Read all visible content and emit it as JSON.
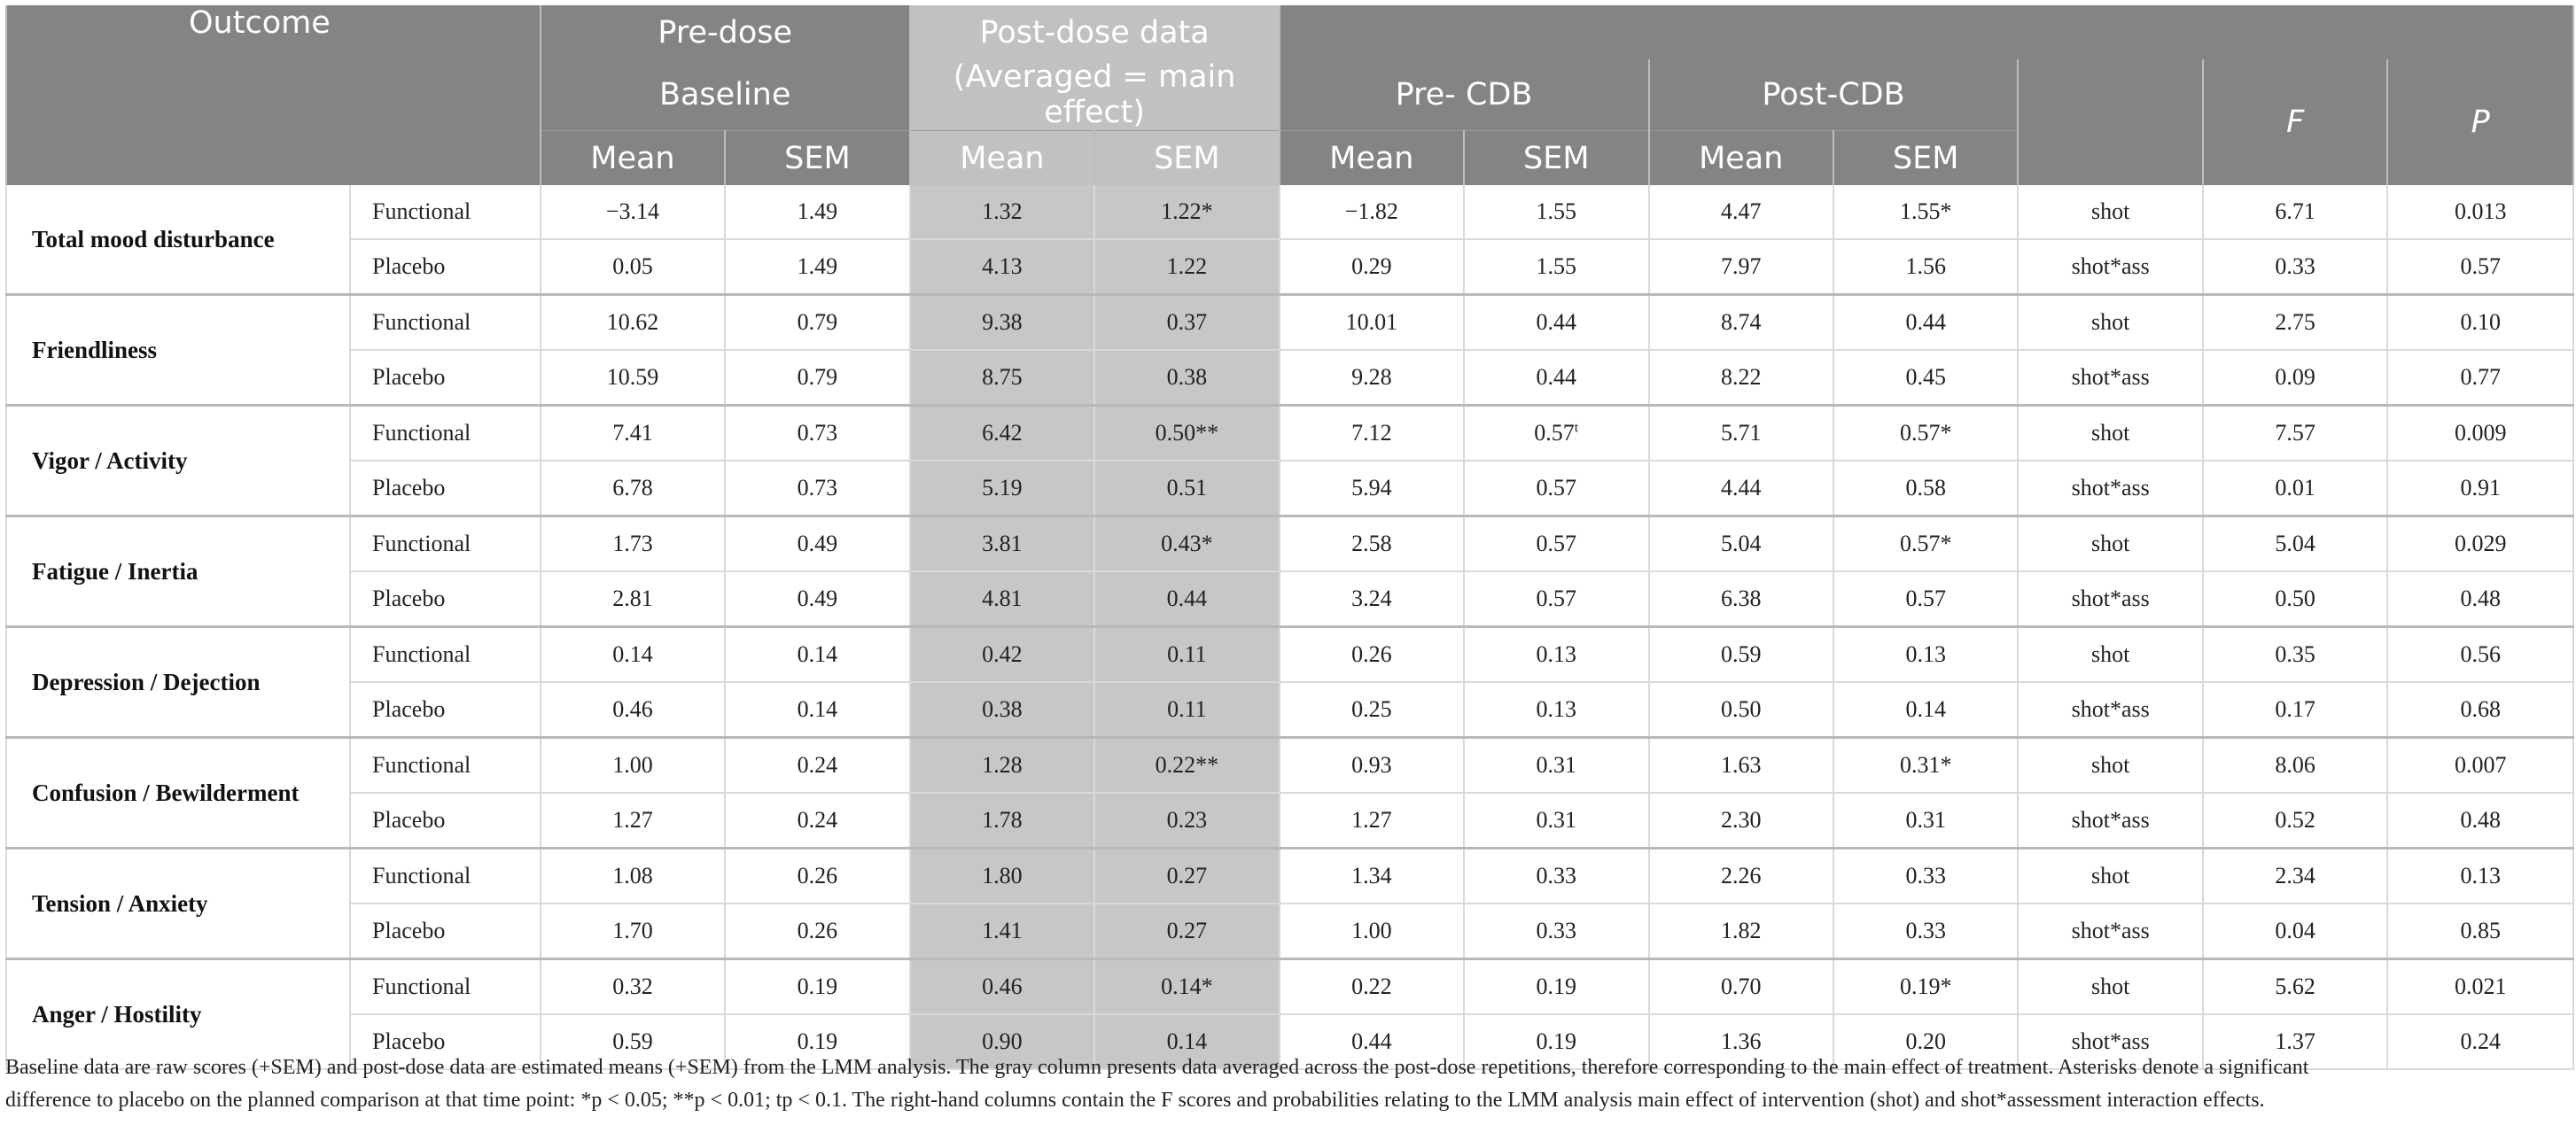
{
  "header": {
    "outcome": "Outcome",
    "pre_dose_line1": "Pre-dose",
    "pre_dose_line2": "Baseline",
    "post_dose_line1": "Post-dose data",
    "post_dose_line2": "(Averaged = main effect)",
    "pre_cdb": "Pre- CDB",
    "post_cdb": "Post-CDB",
    "f": "F",
    "p": "P",
    "mean": "Mean",
    "sem": "SEM"
  },
  "rows": [
    {
      "outcome": "Total mood disturbance",
      "group": "Functional",
      "pre_mean": "−3.14",
      "pre_sem": "1.49",
      "post_mean": "1.32",
      "post_sem": "1.22*",
      "precdb_mean": "−1.82",
      "precdb_sem": "1.55",
      "postcdb_mean": "4.47",
      "postcdb_sem": "1.55*",
      "effect": "shot",
      "f": "6.71",
      "p": "0.013"
    },
    {
      "outcome": "",
      "group": "Placebo",
      "pre_mean": "0.05",
      "pre_sem": "1.49",
      "post_mean": "4.13",
      "post_sem": "1.22",
      "precdb_mean": "0.29",
      "precdb_sem": "1.55",
      "postcdb_mean": "7.97",
      "postcdb_sem": "1.56",
      "effect": "shot*ass",
      "f": "0.33",
      "p": "0.57"
    },
    {
      "outcome": "Friendliness",
      "group": "Functional",
      "pre_mean": "10.62",
      "pre_sem": "0.79",
      "post_mean": "9.38",
      "post_sem": "0.37",
      "precdb_mean": "10.01",
      "precdb_sem": "0.44",
      "postcdb_mean": "8.74",
      "postcdb_sem": "0.44",
      "effect": "shot",
      "f": "2.75",
      "p": "0.10"
    },
    {
      "outcome": "",
      "group": "Placebo",
      "pre_mean": "10.59",
      "pre_sem": "0.79",
      "post_mean": "8.75",
      "post_sem": "0.38",
      "precdb_mean": "9.28",
      "precdb_sem": "0.44",
      "postcdb_mean": "8.22",
      "postcdb_sem": "0.45",
      "effect": "shot*ass",
      "f": "0.09",
      "p": "0.77"
    },
    {
      "outcome": "Vigor / Activity",
      "group": "Functional",
      "pre_mean": "7.41",
      "pre_sem": "0.73",
      "post_mean": "6.42",
      "post_sem": "0.50**",
      "precdb_mean": "7.12",
      "precdb_sem": "0.57",
      "precdb_sem_sup": "t",
      "postcdb_mean": "5.71",
      "postcdb_sem": "0.57*",
      "effect": "shot",
      "f": "7.57",
      "p": "0.009"
    },
    {
      "outcome": "",
      "group": "Placebo",
      "pre_mean": "6.78",
      "pre_sem": "0.73",
      "post_mean": "5.19",
      "post_sem": "0.51",
      "precdb_mean": "5.94",
      "precdb_sem": "0.57",
      "postcdb_mean": "4.44",
      "postcdb_sem": "0.58",
      "effect": "shot*ass",
      "f": "0.01",
      "p": "0.91"
    },
    {
      "outcome": "Fatigue / Inertia",
      "group": "Functional",
      "pre_mean": "1.73",
      "pre_sem": "0.49",
      "post_mean": "3.81",
      "post_sem": "0.43*",
      "precdb_mean": "2.58",
      "precdb_sem": "0.57",
      "postcdb_mean": "5.04",
      "postcdb_sem": "0.57*",
      "effect": "shot",
      "f": "5.04",
      "p": "0.029"
    },
    {
      "outcome": "",
      "group": "Placebo",
      "pre_mean": "2.81",
      "pre_sem": "0.49",
      "post_mean": "4.81",
      "post_sem": "0.44",
      "precdb_mean": "3.24",
      "precdb_sem": "0.57",
      "postcdb_mean": "6.38",
      "postcdb_sem": "0.57",
      "effect": "shot*ass",
      "f": "0.50",
      "p": "0.48"
    },
    {
      "outcome": "Depression / Dejection",
      "group": "Functional",
      "pre_mean": "0.14",
      "pre_sem": "0.14",
      "post_mean": "0.42",
      "post_sem": "0.11",
      "precdb_mean": "0.26",
      "precdb_sem": "0.13",
      "postcdb_mean": "0.59",
      "postcdb_sem": "0.13",
      "effect": "shot",
      "f": "0.35",
      "p": "0.56"
    },
    {
      "outcome": "",
      "group": "Placebo",
      "pre_mean": "0.46",
      "pre_sem": "0.14",
      "post_mean": "0.38",
      "post_sem": "0.11",
      "precdb_mean": "0.25",
      "precdb_sem": "0.13",
      "postcdb_mean": "0.50",
      "postcdb_sem": "0.14",
      "effect": "shot*ass",
      "f": "0.17",
      "p": "0.68"
    },
    {
      "outcome": "Confusion / Bewilderment",
      "group": "Functional",
      "pre_mean": "1.00",
      "pre_sem": "0.24",
      "post_mean": "1.28",
      "post_sem": "0.22**",
      "precdb_mean": "0.93",
      "precdb_sem": "0.31",
      "postcdb_mean": "1.63",
      "postcdb_sem": "0.31*",
      "effect": "shot",
      "f": "8.06",
      "p": "0.007"
    },
    {
      "outcome": "",
      "group": "Placebo",
      "pre_mean": "1.27",
      "pre_sem": "0.24",
      "post_mean": "1.78",
      "post_sem": "0.23",
      "precdb_mean": "1.27",
      "precdb_sem": "0.31",
      "postcdb_mean": "2.30",
      "postcdb_sem": "0.31",
      "effect": "shot*ass",
      "f": "0.52",
      "p": "0.48"
    },
    {
      "outcome": "Tension / Anxiety",
      "group": "Functional",
      "pre_mean": "1.08",
      "pre_sem": "0.26",
      "post_mean": "1.80",
      "post_sem": "0.27",
      "precdb_mean": "1.34",
      "precdb_sem": "0.33",
      "postcdb_mean": "2.26",
      "postcdb_sem": "0.33",
      "effect": "shot",
      "f": "2.34",
      "p": "0.13"
    },
    {
      "outcome": "",
      "group": "Placebo",
      "pre_mean": "1.70",
      "pre_sem": "0.26",
      "post_mean": "1.41",
      "post_sem": "0.27",
      "precdb_mean": "1.00",
      "precdb_sem": "0.33",
      "postcdb_mean": "1.82",
      "postcdb_sem": "0.33",
      "effect": "shot*ass",
      "f": "0.04",
      "p": "0.85"
    },
    {
      "outcome": "Anger / Hostility",
      "group": "Functional",
      "pre_mean": "0.32",
      "pre_sem": "0.19",
      "post_mean": "0.46",
      "post_sem": "0.14*",
      "precdb_mean": "0.22",
      "precdb_sem": "0.19",
      "postcdb_mean": "0.70",
      "postcdb_sem": "0.19*",
      "effect": "shot",
      "f": "5.62",
      "p": "0.021"
    },
    {
      "outcome": "",
      "group": "Placebo",
      "pre_mean": "0.59",
      "pre_sem": "0.19",
      "post_mean": "0.90",
      "post_sem": "0.14",
      "precdb_mean": "0.44",
      "precdb_sem": "0.19",
      "postcdb_mean": "1.36",
      "postcdb_sem": "0.20",
      "effect": "shot*ass",
      "f": "1.37",
      "p": "0.24"
    }
  ],
  "footnote": {
    "line1": "Baseline data are raw scores (+SEM) and post-dose data are estimated means (+SEM) from the LMM analysis. The gray column presents data averaged across the post-dose repetitions, therefore corresponding to the main effect of treatment. Asterisks denote a significant",
    "line2": "difference to placebo on the planned comparison at that time point: *p < 0.05; **p < 0.01; tp < 0.1. The right-hand columns contain the F scores and probabilities relating to the LMM analysis main effect of intervention (shot) and shot*assessment interaction effects."
  }
}
